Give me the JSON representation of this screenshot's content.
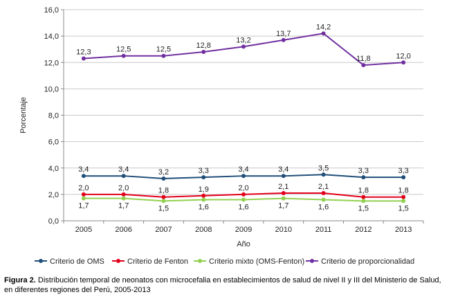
{
  "chart_data": {
    "type": "line",
    "categories": [
      "2005",
      "2006",
      "2007",
      "2008",
      "2009",
      "2010",
      "2011",
      "2012",
      "2013"
    ],
    "xlabel": "Año",
    "ylabel": "Porcentaje",
    "ylim": [
      0,
      16
    ],
    "yticks": [
      "0,0",
      "2,0",
      "4,0",
      "6,0",
      "8,0",
      "10,0",
      "12,0",
      "14,0",
      "16,0"
    ],
    "grid": "horizontal",
    "legend_position": "bottom",
    "series": [
      {
        "name": "Criterio de OMS",
        "color": "#1f4e79",
        "values": [
          3.4,
          3.4,
          3.2,
          3.3,
          3.4,
          3.4,
          3.5,
          3.3,
          3.3
        ],
        "labels": [
          "3,4",
          "3,4",
          "3,2",
          "3,3",
          "3,4",
          "3,4",
          "3,5",
          "3,3",
          "3,3"
        ],
        "label_pos": "above"
      },
      {
        "name": "Criterio de Fenton",
        "color": "#e3001b",
        "values": [
          2.0,
          2.0,
          1.8,
          1.9,
          2.0,
          2.1,
          2.1,
          1.8,
          1.8
        ],
        "labels": [
          "2,0",
          "2,0",
          "1,8",
          "1,9",
          "2,0",
          "2,1",
          "2,1",
          "1,8",
          "1,8"
        ],
        "label_pos": "above"
      },
      {
        "name": "Criterio mixto (OMS-Fenton)",
        "color": "#92d050",
        "values": [
          1.7,
          1.7,
          1.5,
          1.6,
          1.6,
          1.7,
          1.6,
          1.5,
          1.5
        ],
        "labels": [
          "1,7",
          "1,7",
          "1,5",
          "1,6",
          "1,6",
          "1,7",
          "1,6",
          "1,5",
          "1,5"
        ],
        "label_pos": "below"
      },
      {
        "name": "Criterio  de proporcionalidad",
        "color": "#7030a0",
        "values": [
          12.3,
          12.5,
          12.5,
          12.8,
          13.2,
          13.7,
          14.2,
          11.8,
          12.0
        ],
        "labels": [
          "12,3",
          "12,5",
          "12,5",
          "12,8",
          "13,2",
          "13,7",
          "14,2",
          "11,8",
          "12,0"
        ],
        "label_pos": "above"
      }
    ]
  },
  "caption": {
    "label": "Figura 2.",
    "text": "Distribución temporal de neonatos con microcefalia en establecimientos de salud de nivel II y III del Ministerio de Salud, en diferentes regiones del Perú, 2005-2013"
  }
}
